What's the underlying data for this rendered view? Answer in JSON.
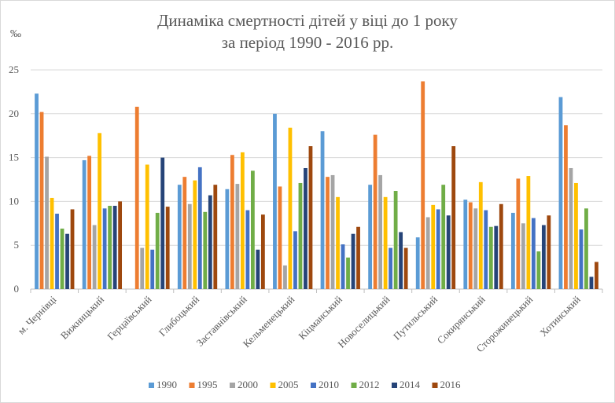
{
  "chart_data": {
    "type": "bar",
    "title": "Динаміка смертності дітей у віці до 1 року",
    "subtitle": "за період 1990 - 2016 рр.",
    "ylabel": "‰",
    "xlabel": "",
    "ylim": [
      0,
      25
    ],
    "yticks": [
      0,
      5,
      10,
      15,
      20,
      25
    ],
    "grid": true,
    "legend_position": "bottom",
    "categories": [
      "м. Чернівці",
      "Вижницький",
      "Герцаївський",
      "Глибоцький",
      "Заставнівський",
      "Кельменецький",
      "Кіцманський",
      "Новоселицький",
      "Путильський",
      "Сокирянський",
      "Сторожинецький",
      "Хотинський"
    ],
    "series": [
      {
        "name": "1990",
        "color": "#5b9bd5",
        "values": [
          22.3,
          14.7,
          0,
          11.9,
          11.4,
          20.0,
          18.0,
          11.9,
          5.9,
          10.2,
          8.7,
          21.9
        ]
      },
      {
        "name": "1995",
        "color": "#ed7d31",
        "values": [
          20.2,
          15.2,
          20.8,
          12.8,
          15.3,
          11.7,
          12.8,
          17.6,
          23.7,
          9.9,
          12.6,
          18.7
        ]
      },
      {
        "name": "2000",
        "color": "#a5a5a5",
        "values": [
          15.1,
          7.3,
          4.7,
          9.7,
          12.0,
          2.7,
          13.0,
          13.0,
          8.2,
          9.2,
          7.5,
          13.8
        ]
      },
      {
        "name": "2005",
        "color": "#ffc000",
        "values": [
          10.4,
          17.8,
          14.2,
          12.4,
          15.6,
          18.4,
          10.5,
          10.5,
          9.6,
          12.2,
          12.9,
          12.1
        ]
      },
      {
        "name": "2010",
        "color": "#4472c4",
        "values": [
          8.6,
          9.2,
          4.5,
          13.9,
          9.0,
          6.6,
          5.1,
          4.7,
          9.1,
          9.0,
          8.1,
          6.8
        ]
      },
      {
        "name": "2012",
        "color": "#70ad47",
        "values": [
          6.9,
          9.5,
          8.7,
          8.8,
          13.5,
          12.1,
          3.6,
          11.2,
          11.9,
          7.1,
          4.3,
          9.2
        ]
      },
      {
        "name": "2014",
        "color": "#264478",
        "values": [
          6.3,
          9.5,
          15.0,
          10.7,
          4.5,
          13.8,
          6.3,
          6.5,
          8.4,
          7.2,
          7.3,
          1.4
        ]
      },
      {
        "name": "2016",
        "color": "#9e480e",
        "values": [
          9.1,
          10.0,
          9.4,
          11.9,
          8.5,
          16.3,
          7.1,
          4.7,
          16.3,
          9.7,
          8.4,
          3.1
        ]
      }
    ]
  }
}
